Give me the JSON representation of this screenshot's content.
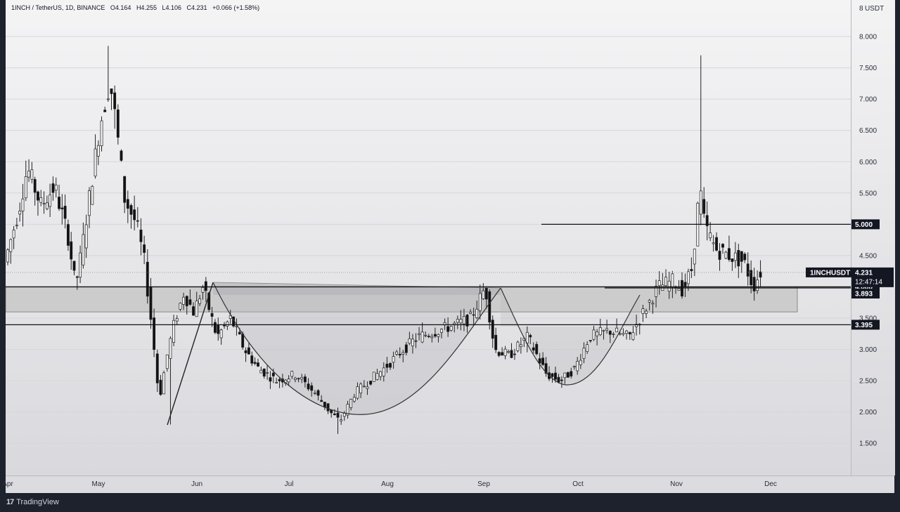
{
  "header": {
    "symbol": "1INCH / TetherUS, 1D, BINANCE",
    "open": "O4.164",
    "high": "H4.255",
    "low": "L4.106",
    "close": "C4.231",
    "change": "+0.066 (+1.58%)"
  },
  "footer": {
    "logo_mark": "17",
    "logo_text": "TradingView"
  },
  "colors": {
    "candle_up": "#3a3a3a",
    "candle_down": "#111111",
    "zone_fill": "#c4c4c4",
    "label_bg": "#131722",
    "label_text": "#ffffff"
  },
  "chart_data": {
    "type": "candlestick",
    "price_axis": {
      "unit": "USDT",
      "top_label": "8",
      "ticks": [
        "8.000",
        "7.500",
        "7.000",
        "6.500",
        "6.000",
        "5.500",
        "5.000",
        "4.500",
        "4.000",
        "3.500",
        "3.000",
        "2.500",
        "2.000",
        "1.500"
      ],
      "range": [
        1.0,
        8.5
      ]
    },
    "time_axis": {
      "labels": [
        "Apr",
        "May",
        "Jun",
        "Jul",
        "Aug",
        "Sep",
        "Oct",
        "Nov",
        "Dec"
      ]
    },
    "last_price": {
      "symbol_label": "1INCHUSDT",
      "value": "4.231",
      "countdown": "12:47:14"
    },
    "levels": [
      {
        "value": 5.0,
        "label": "5.000"
      },
      {
        "value": 4.0,
        "label": "4.000"
      },
      {
        "value": 3.893,
        "label": "3.893"
      },
      {
        "value": 3.395,
        "label": "3.395"
      }
    ],
    "support_zone": {
      "from": 3.6,
      "to": 4.0
    },
    "pattern": "double cup (cup and handle) with breakout",
    "candles_approx": [
      {
        "period": "Apr",
        "price": 4.4
      },
      {
        "period": "late Apr",
        "price": 5.9
      },
      {
        "period": "early May",
        "price": 4.0
      },
      {
        "period": "May high",
        "price": 7.85
      },
      {
        "period": "late May",
        "price": 3.0
      },
      {
        "period": "May low",
        "price": 1.8
      },
      {
        "period": "early Jun",
        "price": 4.1
      },
      {
        "period": "Jul",
        "price": 2.6
      },
      {
        "period": "late Jul low",
        "price": 1.65
      },
      {
        "period": "Aug",
        "price": 2.8
      },
      {
        "period": "early Sep",
        "price": 4.1
      },
      {
        "period": "late Sep",
        "price": 2.3
      },
      {
        "period": "Oct",
        "price": 3.2
      },
      {
        "period": "late Oct",
        "price": 5.8
      },
      {
        "period": "spike high",
        "price": 7.7
      },
      {
        "period": "Nov",
        "price": 4.231
      }
    ]
  }
}
